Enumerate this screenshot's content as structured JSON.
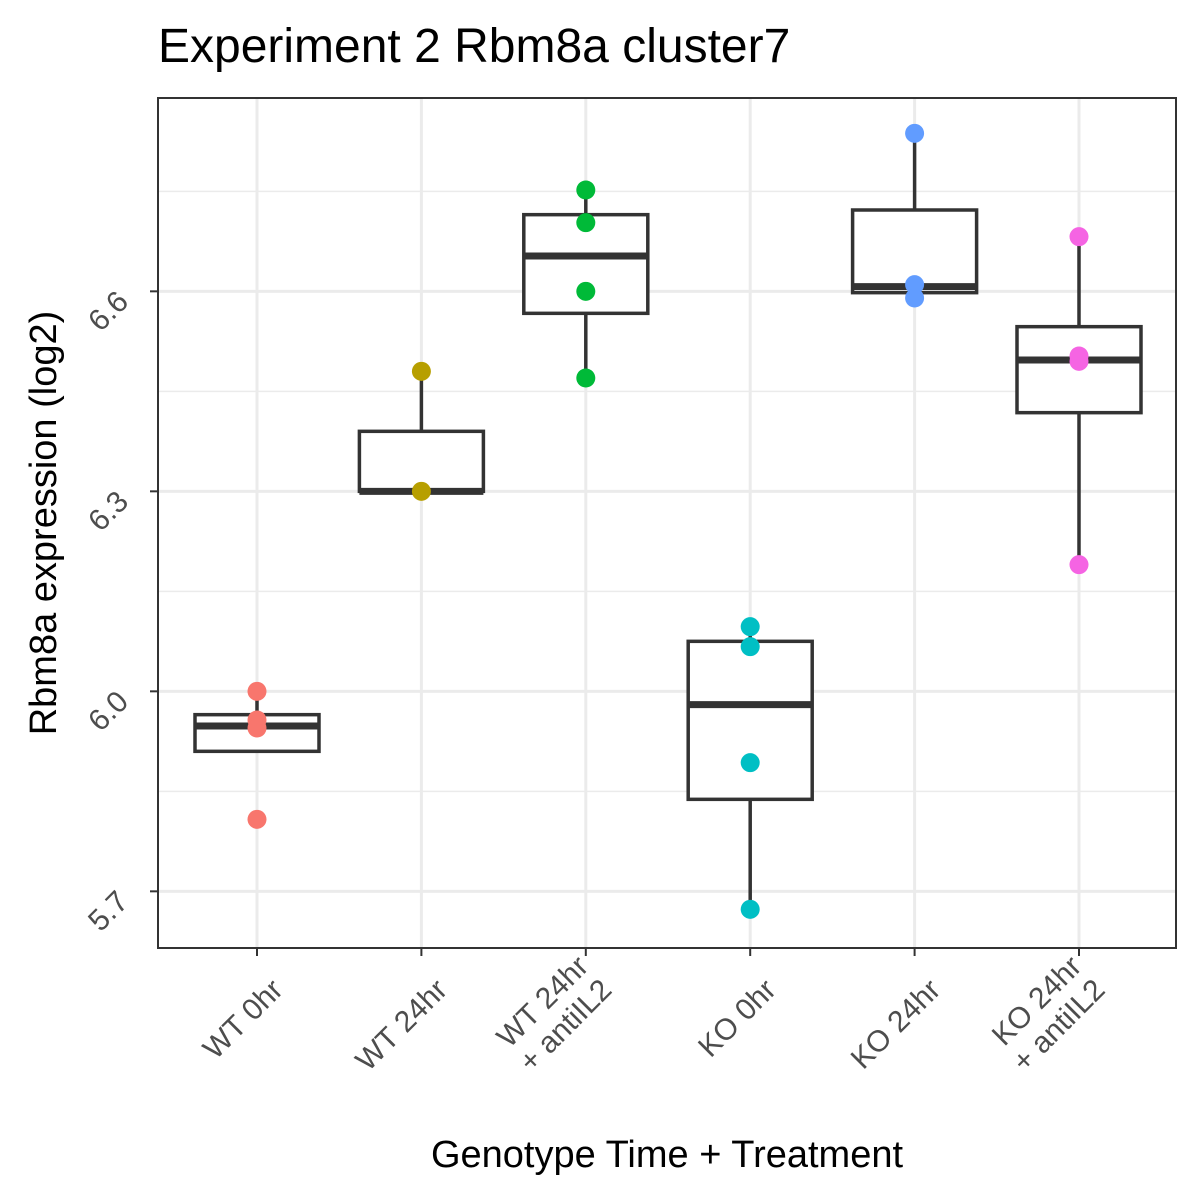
{
  "chart_data": {
    "type": "box",
    "title": "Experiment 2 Rbm8a cluster7",
    "xlabel": "Genotype Time + Treatment",
    "ylabel": "Rbm8a expression (log2)",
    "ylim": [
      5.615,
      6.89
    ],
    "y_ticks": [
      5.7,
      6.0,
      6.3,
      6.6
    ],
    "y_tick_labels": [
      "5.7",
      "6.0",
      "6.3",
      "6.6"
    ],
    "grid": true,
    "legend": "none",
    "categories": [
      {
        "label": [
          "WT 0hr"
        ],
        "color": "#F8766D",
        "box": {
          "whisker_low": 5.91,
          "q1": 5.91,
          "median": 5.948,
          "q3": 5.965,
          "whisker_high": 6.0
        },
        "points": [
          6.0,
          5.957,
          5.945,
          5.808
        ]
      },
      {
        "label": [
          "WT 24hr"
        ],
        "color": "#B79F00",
        "box": {
          "whisker_low": 6.3,
          "q1": 6.3,
          "median": 6.3,
          "q3": 6.39,
          "whisker_high": 6.48
        },
        "points": [
          6.48,
          6.3
        ]
      },
      {
        "label": [
          "WT 24hr",
          "+ antiIL2"
        ],
        "color": "#00BA38",
        "box": {
          "whisker_low": 6.47,
          "q1": 6.567,
          "median": 6.653,
          "q3": 6.715,
          "whisker_high": 6.752
        },
        "points": [
          6.752,
          6.703,
          6.6,
          6.47
        ]
      },
      {
        "label": [
          "KO 0hr"
        ],
        "color": "#00BFC4",
        "box": {
          "whisker_low": 5.673,
          "q1": 5.838,
          "median": 5.98,
          "q3": 6.075,
          "whisker_high": 6.097
        },
        "points": [
          6.097,
          6.067,
          5.893,
          5.673
        ]
      },
      {
        "label": [
          "KO 24hr"
        ],
        "color": "#619CFF",
        "box": {
          "whisker_low": 6.598,
          "q1": 6.598,
          "median": 6.607,
          "q3": 6.722,
          "whisker_high": 6.837
        },
        "points": [
          6.837,
          6.61,
          6.59
        ]
      },
      {
        "label": [
          "KO 24hr",
          "+ antiIL2"
        ],
        "color": "#F564E3",
        "box": {
          "whisker_low": 6.19,
          "q1": 6.418,
          "median": 6.497,
          "q3": 6.547,
          "whisker_high": 6.682
        },
        "points": [
          6.682,
          6.503,
          6.495,
          6.19
        ]
      }
    ]
  }
}
